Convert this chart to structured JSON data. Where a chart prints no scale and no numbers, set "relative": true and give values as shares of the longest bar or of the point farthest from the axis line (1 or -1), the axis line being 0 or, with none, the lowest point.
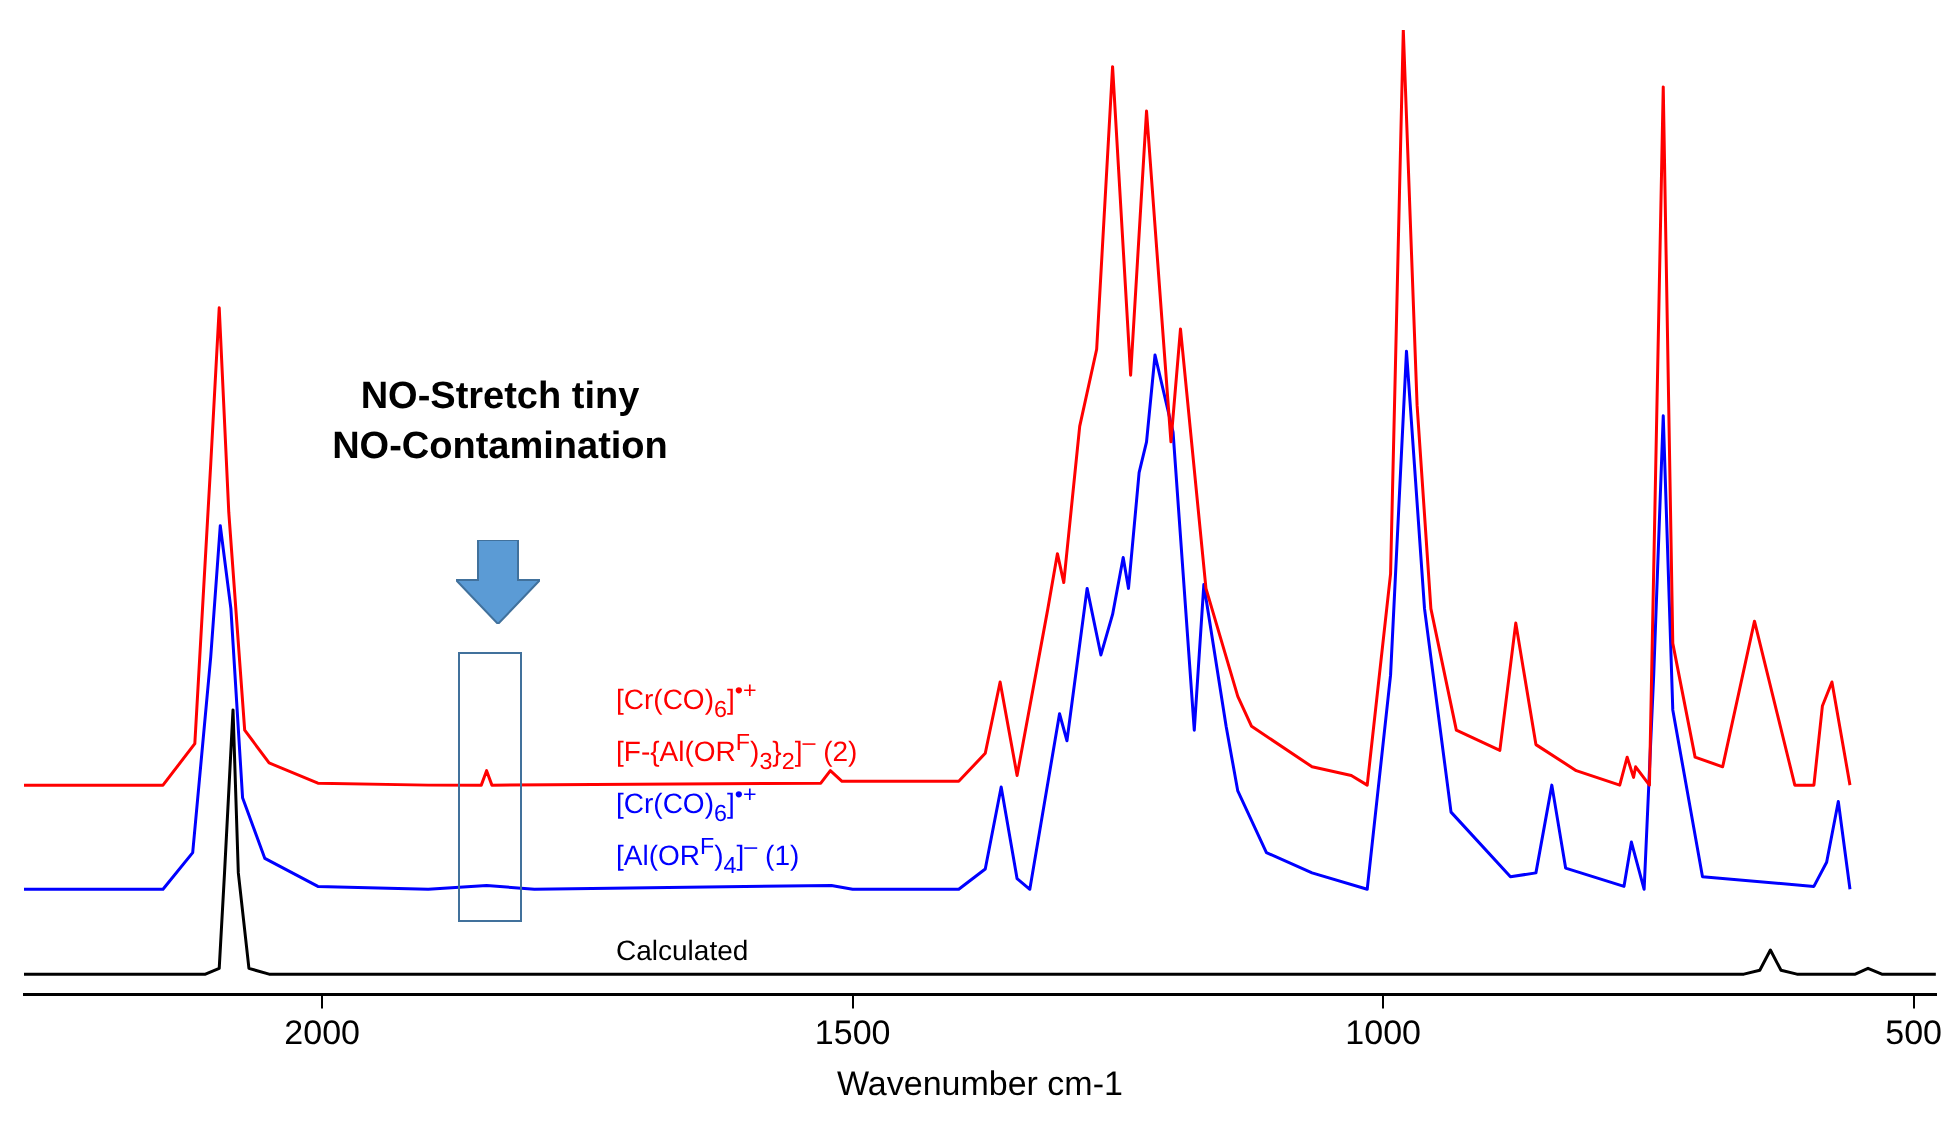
{
  "chart_data": {
    "type": "line",
    "relative": true,
    "xlabel": "Wavenumber cm-1",
    "xlim": [
      2281,
      479
    ],
    "xticks": [
      2000,
      1500,
      1000,
      500
    ],
    "grid": false,
    "legend": false,
    "marker": "none",
    "line_style": "solid",
    "annotations": [
      "NO-Stretch tiny\nNO-Contamination"
    ],
    "series": [
      {
        "name": "[Cr(CO)$_{6}$]$^{•+}$\n[F-{Al(OR$^{F}$)$_{3}$}$_{2}$]$^{–}$ (2)",
        "color": "#ff0000",
        "x": [
          2281,
          2150,
          2120,
          2105,
          2097,
          2088,
          2073,
          2050,
          2004,
          1900,
          1850,
          1845,
          1840,
          1530,
          1521,
          1510,
          1400,
          1375,
          1361,
          1345,
          1316,
          1307,
          1301,
          1286,
          1270,
          1255,
          1238,
          1223,
          1200,
          1191,
          1167,
          1137,
          1124,
          1067,
          1030,
          1015,
          993,
          981,
          968,
          955,
          931,
          890,
          875,
          856,
          818,
          777,
          770,
          764,
          762,
          749,
          736,
          727,
          706,
          680,
          650,
          612,
          594,
          586,
          577,
          560
        ],
        "values": [
          0.217,
          0.217,
          0.26,
          0.55,
          0.712,
          0.5,
          0.274,
          0.24,
          0.219,
          0.217,
          0.217,
          0.232,
          0.217,
          0.219,
          0.232,
          0.221,
          0.221,
          0.25,
          0.324,
          0.227,
          0.4,
          0.457,
          0.427,
          0.589,
          0.669,
          0.962,
          0.642,
          0.916,
          0.573,
          0.69,
          0.421,
          0.309,
          0.278,
          0.236,
          0.227,
          0.217,
          0.436,
          1,
          0.611,
          0.4,
          0.274,
          0.253,
          0.385,
          0.259,
          0.232,
          0.217,
          0.246,
          0.225,
          0.236,
          0.217,
          0.941,
          0.364,
          0.246,
          0.236,
          0.387,
          0.217,
          0.217,
          0.299,
          0.324,
          0.217
        ]
      },
      {
        "name": "[Cr(CO)$_{6}$]$^{•+}$\n[Al(OR$^{F}$)$_{4}$]$^{–}$ (1)",
        "color": "#0000ff",
        "x": [
          2281,
          2150,
          2122,
          2105,
          2096,
          2086,
          2075,
          2054,
          2004,
          1900,
          1845,
          1800,
          1520,
          1500,
          1400,
          1375,
          1360,
          1345,
          1333,
          1305,
          1298,
          1279,
          1266,
          1255,
          1245,
          1240,
          1230,
          1223,
          1215,
          1198,
          1178,
          1169,
          1148,
          1137,
          1110,
          1067,
          1015,
          993,
          978,
          961,
          936,
          880,
          856,
          841,
          828,
          773,
          766,
          754,
          745,
          736,
          727,
          699,
          594,
          582,
          571,
          560
        ],
        "values": [
          0.109,
          0.109,
          0.147,
          0.35,
          0.486,
          0.4,
          0.204,
          0.141,
          0.112,
          0.109,
          0.113,
          0.109,
          0.113,
          0.109,
          0.109,
          0.13,
          0.215,
          0.12,
          0.109,
          0.291,
          0.263,
          0.421,
          0.352,
          0.394,
          0.453,
          0.421,
          0.541,
          0.573,
          0.663,
          0.583,
          0.274,
          0.425,
          0.278,
          0.211,
          0.147,
          0.126,
          0.109,
          0.331,
          0.667,
          0.4,
          0.189,
          0.122,
          0.126,
          0.217,
          0.131,
          0.112,
          0.158,
          0.109,
          0.331,
          0.6,
          0.295,
          0.122,
          0.112,
          0.137,
          0.2,
          0.109
        ]
      },
      {
        "name": "Calculated",
        "color": "#000000",
        "x": [
          2281,
          2110,
          2097,
          2092,
          2084,
          2079,
          2069,
          2050,
          1500,
          660,
          645,
          635,
          625,
          610,
          555,
          543,
          530,
          479
        ],
        "values": [
          0.021,
          0.021,
          0.027,
          0.126,
          0.295,
          0.126,
          0.027,
          0.021,
          0.021,
          0.021,
          0.025,
          0.046,
          0.025,
          0.021,
          0.021,
          0.027,
          0.021,
          0.021
        ]
      }
    ]
  }
}
